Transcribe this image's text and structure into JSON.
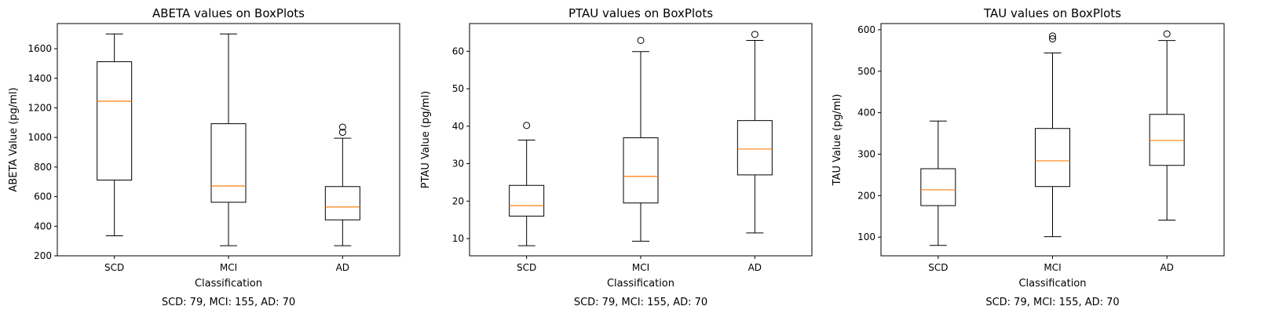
{
  "chart_data": [
    {
      "type": "box",
      "title": "ABETA values on BoxPlots",
      "xlabel": "Classification",
      "ylabel": "ABETA Value (pg/ml)",
      "footnote": "SCD: 79, MCI: 155, AD: 70",
      "ylim": [
        200,
        1770
      ],
      "yticks": [
        200,
        400,
        600,
        800,
        1000,
        1200,
        1400,
        1600
      ],
      "categories": [
        "SCD",
        "MCI",
        "AD"
      ],
      "boxes": [
        {
          "min": 335,
          "q1": 712,
          "median": 1245,
          "q3": 1512,
          "max": 1700,
          "outliers": []
        },
        {
          "min": 268,
          "q1": 562,
          "median": 672,
          "q3": 1093,
          "max": 1700,
          "outliers": []
        },
        {
          "min": 268,
          "q1": 443,
          "median": 530,
          "q3": 668,
          "max": 995,
          "outliers": [
            1070,
            1035
          ]
        }
      ]
    },
    {
      "type": "box",
      "title": "PTAU values on BoxPlots",
      "xlabel": "Classification",
      "ylabel": "PTAU Value (pg/ml)",
      "footnote": "SCD: 79, MCI: 155, AD: 70",
      "ylim": [
        5.4,
        67.4
      ],
      "yticks": [
        10,
        20,
        30,
        40,
        50,
        60
      ],
      "categories": [
        "SCD",
        "MCI",
        "AD"
      ],
      "boxes": [
        {
          "min": 8.1,
          "q1": 16.0,
          "median": 18.8,
          "q3": 24.2,
          "max": 36.3,
          "outliers": [
            40.2
          ]
        },
        {
          "min": 9.3,
          "q1": 19.5,
          "median": 26.6,
          "q3": 36.9,
          "max": 59.9,
          "outliers": [
            62.9
          ]
        },
        {
          "min": 11.5,
          "q1": 27.0,
          "median": 33.9,
          "q3": 41.5,
          "max": 62.9,
          "outliers": [
            64.5
          ]
        }
      ]
    },
    {
      "type": "box",
      "title": "TAU values on BoxPlots",
      "xlabel": "Classification",
      "ylabel": "TAU Value (pg/ml)",
      "footnote": "SCD: 79, MCI: 155, AD: 70",
      "ylim": [
        55,
        615
      ],
      "yticks": [
        100,
        200,
        300,
        400,
        500,
        600
      ],
      "categories": [
        "SCD",
        "MCI",
        "AD"
      ],
      "boxes": [
        {
          "min": 80,
          "q1": 176,
          "median": 214,
          "q3": 265,
          "max": 380,
          "outliers": []
        },
        {
          "min": 101,
          "q1": 222,
          "median": 284,
          "q3": 362,
          "max": 544,
          "outliers": [
            585,
            578
          ]
        },
        {
          "min": 141,
          "q1": 273,
          "median": 333,
          "q3": 396,
          "max": 574,
          "outliers": [
            590
          ]
        }
      ]
    }
  ],
  "colors": {
    "box": "#000000",
    "median": "#ff7f0e",
    "background": "#ffffff"
  }
}
